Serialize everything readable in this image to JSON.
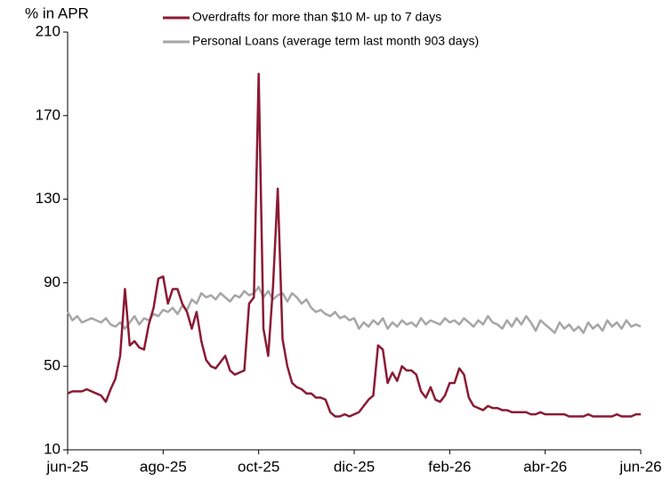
{
  "chart_data": {
    "type": "line",
    "y_label": "% in APR",
    "categories": [
      "jun-25",
      null,
      null,
      null,
      null,
      null,
      null,
      null,
      null,
      null,
      null,
      null,
      null,
      null,
      null,
      null,
      null,
      null,
      null,
      null,
      "ago-25",
      null,
      null,
      null,
      null,
      null,
      null,
      null,
      null,
      null,
      null,
      null,
      null,
      null,
      null,
      null,
      null,
      null,
      null,
      null,
      "oct-25",
      null,
      null,
      null,
      null,
      null,
      null,
      null,
      null,
      null,
      null,
      null,
      null,
      null,
      null,
      null,
      null,
      null,
      null,
      null,
      "dic-25",
      null,
      null,
      null,
      null,
      null,
      null,
      null,
      null,
      null,
      null,
      null,
      null,
      null,
      null,
      null,
      null,
      null,
      null,
      null,
      "feb-26",
      null,
      null,
      null,
      null,
      null,
      null,
      null,
      null,
      null,
      null,
      null,
      null,
      null,
      null,
      null,
      null,
      null,
      null,
      null,
      "abr-26",
      null,
      null,
      null,
      null,
      null,
      null,
      null,
      null,
      null,
      null,
      null,
      null,
      null,
      null,
      null,
      null,
      null,
      null,
      null,
      "jun-26"
    ],
    "series": [
      {
        "name": "Overdrafts for more than $10 M- up to 7 days",
        "color": "#8b1a34",
        "values": [
          37,
          38,
          38,
          38,
          39,
          38,
          37,
          36,
          33,
          39,
          44,
          55,
          87,
          60,
          62,
          59,
          58,
          70,
          78,
          92,
          93,
          80,
          87,
          87,
          80,
          76,
          68,
          76,
          62,
          53,
          50,
          49,
          52,
          55,
          48,
          46,
          47,
          48,
          80,
          83,
          190,
          68,
          55,
          88,
          135,
          63,
          50,
          42,
          40,
          39,
          37,
          37,
          35,
          35,
          34,
          28,
          26,
          26,
          27,
          26,
          27,
          28,
          31,
          34,
          36,
          60,
          58,
          42,
          47,
          43,
          50,
          48,
          48,
          46,
          38,
          35,
          40,
          34,
          33,
          36,
          42,
          42,
          49,
          46,
          35,
          31,
          30,
          29,
          31,
          30,
          30,
          29,
          29,
          28,
          28,
          28,
          28,
          27,
          27,
          28,
          27,
          27,
          27,
          27,
          27,
          26,
          26,
          26,
          26,
          27,
          26,
          26,
          26,
          26,
          26,
          27,
          26,
          26,
          26,
          27,
          27
        ]
      },
      {
        "name": "Personal Loans (average term last month 903 days)",
        "color": "#a6a6a6",
        "values": [
          76,
          72,
          74,
          71,
          72,
          73,
          72,
          71,
          73,
          70,
          69,
          71,
          68,
          71,
          74,
          70,
          73,
          72,
          75,
          74,
          77,
          76,
          78,
          75,
          79,
          77,
          82,
          80,
          85,
          83,
          84,
          82,
          85,
          83,
          81,
          84,
          83,
          86,
          84,
          85,
          88,
          83,
          86,
          82,
          84,
          85,
          81,
          85,
          83,
          80,
          82,
          78,
          76,
          77,
          75,
          74,
          76,
          73,
          74,
          72,
          73,
          68,
          71,
          69,
          72,
          70,
          73,
          68,
          71,
          69,
          72,
          70,
          71,
          69,
          73,
          70,
          72,
          71,
          70,
          73,
          71,
          72,
          70,
          73,
          71,
          69,
          72,
          70,
          74,
          71,
          70,
          68,
          72,
          69,
          73,
          70,
          74,
          71,
          67,
          72,
          70,
          68,
          66,
          71,
          68,
          70,
          67,
          69,
          66,
          71,
          68,
          70,
          67,
          72,
          69,
          71,
          68,
          72,
          69,
          70,
          69
        ]
      }
    ],
    "ylim": [
      10,
      210
    ],
    "yticks": [
      10,
      50,
      90,
      130,
      170,
      210
    ],
    "grid": false
  }
}
